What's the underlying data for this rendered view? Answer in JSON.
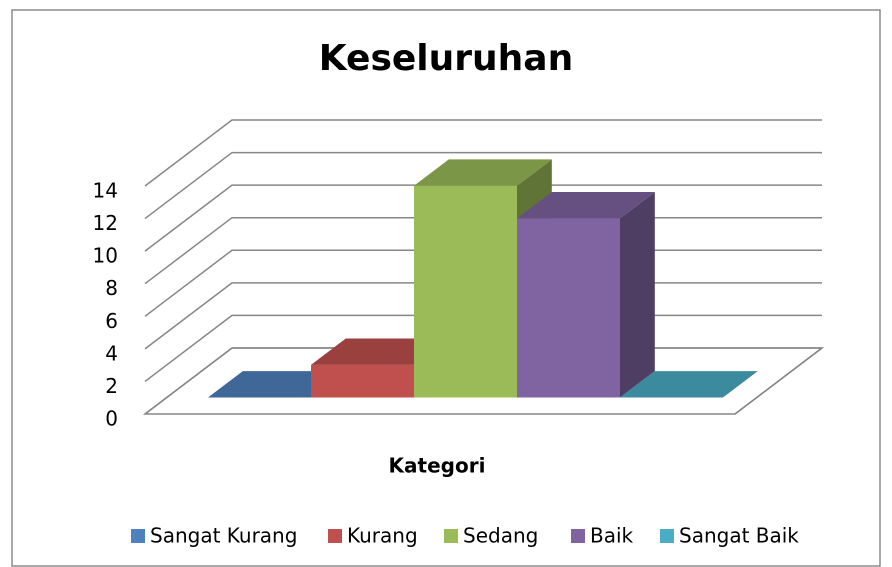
{
  "chart_data": {
    "type": "bar3d",
    "title": "Keseluruhan",
    "x_label": "Kategori",
    "series": [
      {
        "name": "Sangat Kurang",
        "color": "#4f81bd",
        "values": [
          0
        ]
      },
      {
        "name": "Kurang",
        "color": "#c0504d",
        "values": [
          2
        ]
      },
      {
        "name": "Sedang",
        "color": "#9bbb59",
        "values": [
          13
        ]
      },
      {
        "name": "Baik",
        "color": "#8064a2",
        "values": [
          11
        ]
      },
      {
        "name": "Sangat Baik",
        "color": "#4bacc6",
        "values": [
          0
        ]
      }
    ],
    "ylim": [
      0,
      14
    ],
    "yticks": [
      0,
      2,
      4,
      6,
      8,
      10,
      12,
      14
    ],
    "grid": true,
    "legend": "bottom"
  }
}
